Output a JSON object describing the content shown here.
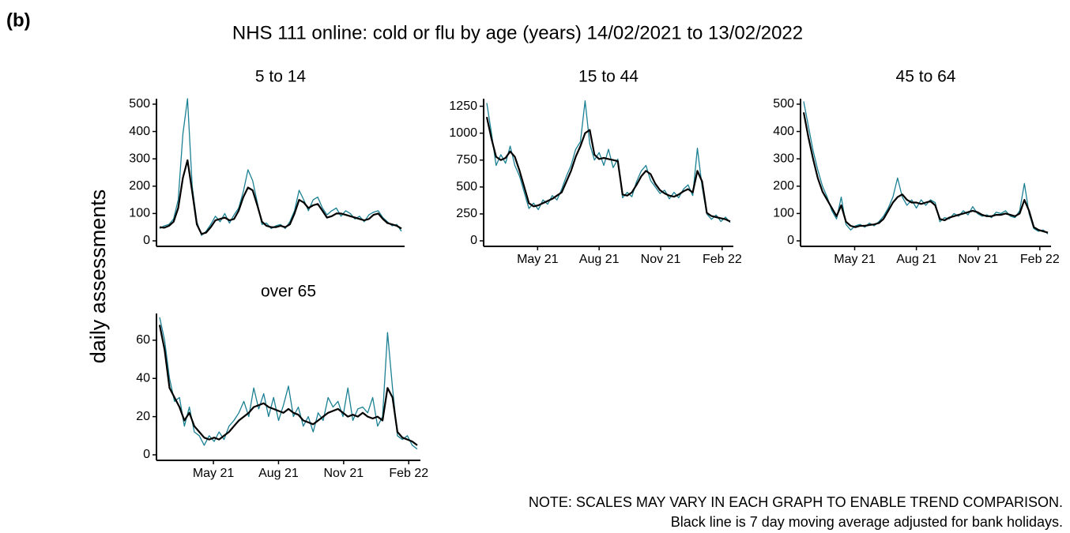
{
  "figure": {
    "label": "(b)",
    "title": "NHS 111 online: cold or flu by age (years) 14/02/2021 to 13/02/2022",
    "y_label": "daily assessments",
    "notes": [
      "NOTE: SCALES MAY VARY IN EACH GRAPH TO ENABLE TREND COMPARISON.",
      "Black line is 7 day moving average adjusted for bank holidays."
    ]
  },
  "chart_data": [
    {
      "type": "line",
      "title": "5 to 14",
      "x": [
        "2021-02-14",
        "2021-02-21",
        "2021-02-28",
        "2021-03-07",
        "2021-03-14",
        "2021-03-21",
        "2021-03-28",
        "2021-04-04",
        "2021-04-11",
        "2021-04-18",
        "2021-04-25",
        "2021-05-02",
        "2021-05-09",
        "2021-05-16",
        "2021-05-23",
        "2021-05-30",
        "2021-06-06",
        "2021-06-13",
        "2021-06-20",
        "2021-06-27",
        "2021-07-04",
        "2021-07-11",
        "2021-07-18",
        "2021-07-25",
        "2021-08-01",
        "2021-08-08",
        "2021-08-15",
        "2021-08-22",
        "2021-08-29",
        "2021-09-05",
        "2021-09-12",
        "2021-09-19",
        "2021-09-26",
        "2021-10-03",
        "2021-10-10",
        "2021-10-17",
        "2021-10-24",
        "2021-10-31",
        "2021-11-07",
        "2021-11-14",
        "2021-11-21",
        "2021-11-28",
        "2021-12-05",
        "2021-12-12",
        "2021-12-19",
        "2021-12-26",
        "2022-01-02",
        "2022-01-09",
        "2022-01-16",
        "2022-01-23",
        "2022-01-30",
        "2022-02-06",
        "2022-02-13"
      ],
      "series": [
        {
          "color": "#1b8093",
          "values": [
            45,
            55,
            60,
            80,
            150,
            390,
            520,
            200,
            70,
            20,
            35,
            60,
            90,
            70,
            100,
            65,
            95,
            120,
            180,
            260,
            220,
            140,
            60,
            65,
            45,
            55,
            60,
            45,
            70,
            110,
            185,
            150,
            110,
            150,
            160,
            120,
            95,
            110,
            120,
            90,
            110,
            100,
            80,
            90,
            70,
            95,
            105,
            110,
            85,
            70,
            55,
            60,
            35
          ]
        },
        {
          "color": "#000000",
          "values": [
            50,
            48,
            55,
            70,
            120,
            230,
            295,
            180,
            60,
            25,
            30,
            50,
            75,
            80,
            85,
            75,
            80,
            110,
            160,
            195,
            185,
            130,
            70,
            55,
            50,
            50,
            55,
            50,
            60,
            100,
            150,
            140,
            120,
            130,
            135,
            110,
            85,
            90,
            100,
            100,
            95,
            90,
            85,
            80,
            75,
            80,
            95,
            100,
            80,
            65,
            60,
            55,
            45
          ]
        }
      ],
      "xlim": [
        "2021-02-14",
        "2022-02-13"
      ],
      "ylim": [
        0,
        520
      ],
      "yticks": [
        0,
        100,
        200,
        300,
        400,
        500
      ]
    },
    {
      "type": "line",
      "title": "15 to 44",
      "x": [
        "2021-02-14",
        "2021-02-21",
        "2021-02-28",
        "2021-03-07",
        "2021-03-14",
        "2021-03-21",
        "2021-03-28",
        "2021-04-04",
        "2021-04-11",
        "2021-04-18",
        "2021-04-25",
        "2021-05-02",
        "2021-05-09",
        "2021-05-16",
        "2021-05-23",
        "2021-05-30",
        "2021-06-06",
        "2021-06-13",
        "2021-06-20",
        "2021-06-27",
        "2021-07-04",
        "2021-07-11",
        "2021-07-18",
        "2021-07-25",
        "2021-08-01",
        "2021-08-08",
        "2021-08-15",
        "2021-08-22",
        "2021-08-29",
        "2021-09-05",
        "2021-09-12",
        "2021-09-19",
        "2021-09-26",
        "2021-10-03",
        "2021-10-10",
        "2021-10-17",
        "2021-10-24",
        "2021-10-31",
        "2021-11-07",
        "2021-11-14",
        "2021-11-21",
        "2021-11-28",
        "2021-12-05",
        "2021-12-12",
        "2021-12-19",
        "2021-12-26",
        "2022-01-02",
        "2022-01-09",
        "2022-01-16",
        "2022-01-23",
        "2022-01-30",
        "2022-02-06",
        "2022-02-13"
      ],
      "series": [
        {
          "color": "#1b8093",
          "values": [
            1280,
            1000,
            700,
            800,
            720,
            880,
            700,
            600,
            450,
            300,
            350,
            290,
            380,
            340,
            420,
            380,
            480,
            600,
            700,
            850,
            920,
            1300,
            900,
            750,
            820,
            700,
            850,
            680,
            760,
            400,
            450,
            410,
            550,
            650,
            700,
            560,
            500,
            440,
            470,
            390,
            450,
            400,
            480,
            520,
            420,
            860,
            500,
            250,
            200,
            240,
            180,
            220,
            170
          ]
        },
        {
          "color": "#000000",
          "values": [
            1150,
            950,
            780,
            750,
            770,
            830,
            780,
            650,
            500,
            350,
            320,
            330,
            350,
            370,
            390,
            420,
            450,
            550,
            650,
            780,
            880,
            1000,
            1030,
            800,
            760,
            770,
            760,
            750,
            740,
            430,
            420,
            450,
            520,
            600,
            650,
            620,
            530,
            470,
            440,
            420,
            410,
            430,
            460,
            480,
            450,
            650,
            550,
            260,
            230,
            220,
            210,
            200,
            180
          ]
        }
      ],
      "xlim": [
        "2021-02-14",
        "2022-02-13"
      ],
      "ylim": [
        0,
        1320
      ],
      "yticks": [
        0,
        250,
        500,
        750,
        1000,
        1250
      ],
      "xticks": [
        {
          "value": "2021-05-01",
          "label": "May 21"
        },
        {
          "value": "2021-08-01",
          "label": "Aug 21"
        },
        {
          "value": "2021-11-01",
          "label": "Nov 21"
        },
        {
          "value": "2022-02-01",
          "label": "Feb 22"
        }
      ]
    },
    {
      "type": "line",
      "title": "45 to 64",
      "x": [
        "2021-02-14",
        "2021-02-21",
        "2021-02-28",
        "2021-03-07",
        "2021-03-14",
        "2021-03-21",
        "2021-03-28",
        "2021-04-04",
        "2021-04-11",
        "2021-04-18",
        "2021-04-25",
        "2021-05-02",
        "2021-05-09",
        "2021-05-16",
        "2021-05-23",
        "2021-05-30",
        "2021-06-06",
        "2021-06-13",
        "2021-06-20",
        "2021-06-27",
        "2021-07-04",
        "2021-07-11",
        "2021-07-18",
        "2021-07-25",
        "2021-08-01",
        "2021-08-08",
        "2021-08-15",
        "2021-08-22",
        "2021-08-29",
        "2021-09-05",
        "2021-09-12",
        "2021-09-19",
        "2021-09-26",
        "2021-10-03",
        "2021-10-10",
        "2021-10-17",
        "2021-10-24",
        "2021-10-31",
        "2021-11-07",
        "2021-11-14",
        "2021-11-21",
        "2021-11-28",
        "2021-12-05",
        "2021-12-12",
        "2021-12-19",
        "2021-12-26",
        "2022-01-02",
        "2022-01-09",
        "2022-01-16",
        "2022-01-23",
        "2022-01-30",
        "2022-02-06",
        "2022-02-13"
      ],
      "series": [
        {
          "color": "#1b8093",
          "values": [
            510,
            420,
            330,
            260,
            200,
            160,
            110,
            80,
            160,
            60,
            40,
            55,
            60,
            50,
            65,
            55,
            70,
            90,
            120,
            160,
            230,
            160,
            130,
            150,
            120,
            150,
            130,
            150,
            140,
            70,
            85,
            80,
            100,
            90,
            110,
            95,
            125,
            100,
            90,
            95,
            85,
            105,
            100,
            110,
            90,
            85,
            110,
            210,
            100,
            45,
            35,
            40,
            25
          ]
        },
        {
          "color": "#000000",
          "values": [
            470,
            380,
            300,
            230,
            180,
            150,
            120,
            90,
            130,
            70,
            55,
            50,
            55,
            55,
            58,
            60,
            65,
            80,
            110,
            140,
            160,
            170,
            150,
            140,
            140,
            135,
            140,
            145,
            130,
            80,
            75,
            85,
            90,
            95,
            100,
            105,
            110,
            105,
            95,
            90,
            90,
            95,
            95,
            100,
            95,
            90,
            100,
            150,
            110,
            50,
            40,
            35,
            30
          ]
        }
      ],
      "xlim": [
        "2021-02-14",
        "2022-02-13"
      ],
      "ylim": [
        0,
        520
      ],
      "yticks": [
        0,
        100,
        200,
        300,
        400,
        500
      ],
      "xticks": [
        {
          "value": "2021-05-01",
          "label": "May 21"
        },
        {
          "value": "2021-08-01",
          "label": "Aug 21"
        },
        {
          "value": "2021-11-01",
          "label": "Nov 21"
        },
        {
          "value": "2022-02-01",
          "label": "Feb 22"
        }
      ]
    },
    {
      "type": "line",
      "title": "over 65",
      "x": [
        "2021-02-14",
        "2021-02-21",
        "2021-02-28",
        "2021-03-07",
        "2021-03-14",
        "2021-03-21",
        "2021-03-28",
        "2021-04-04",
        "2021-04-11",
        "2021-04-18",
        "2021-04-25",
        "2021-05-02",
        "2021-05-09",
        "2021-05-16",
        "2021-05-23",
        "2021-05-30",
        "2021-06-06",
        "2021-06-13",
        "2021-06-20",
        "2021-06-27",
        "2021-07-04",
        "2021-07-11",
        "2021-07-18",
        "2021-07-25",
        "2021-08-01",
        "2021-08-08",
        "2021-08-15",
        "2021-08-22",
        "2021-08-29",
        "2021-09-05",
        "2021-09-12",
        "2021-09-19",
        "2021-09-26",
        "2021-10-03",
        "2021-10-10",
        "2021-10-17",
        "2021-10-24",
        "2021-10-31",
        "2021-11-07",
        "2021-11-14",
        "2021-11-21",
        "2021-11-28",
        "2021-12-05",
        "2021-12-12",
        "2021-12-19",
        "2021-12-26",
        "2022-01-02",
        "2022-01-09",
        "2022-01-16",
        "2022-01-23",
        "2022-01-30",
        "2022-02-06",
        "2022-02-13"
      ],
      "series": [
        {
          "color": "#1b8093",
          "values": [
            72,
            60,
            40,
            28,
            30,
            15,
            25,
            12,
            10,
            5,
            10,
            7,
            12,
            8,
            15,
            18,
            22,
            28,
            20,
            35,
            24,
            32,
            20,
            30,
            18,
            26,
            36,
            20,
            25,
            15,
            20,
            12,
            22,
            18,
            30,
            25,
            28,
            20,
            35,
            18,
            24,
            25,
            22,
            30,
            15,
            20,
            64,
            35,
            10,
            8,
            10,
            5,
            3
          ]
        },
        {
          "color": "#000000",
          "values": [
            68,
            55,
            35,
            30,
            25,
            18,
            22,
            15,
            12,
            9,
            8,
            9,
            8,
            10,
            12,
            15,
            18,
            20,
            22,
            25,
            26,
            27,
            25,
            24,
            23,
            22,
            24,
            22,
            21,
            18,
            17,
            16,
            18,
            20,
            22,
            23,
            24,
            22,
            20,
            21,
            20,
            22,
            20,
            19,
            20,
            18,
            35,
            30,
            12,
            9,
            8,
            7,
            5
          ]
        }
      ],
      "xlim": [
        "2021-02-14",
        "2022-02-13"
      ],
      "ylim": [
        0,
        74
      ],
      "yticks": [
        0,
        20,
        40,
        60
      ],
      "xticks": [
        {
          "value": "2021-05-01",
          "label": "May 21"
        },
        {
          "value": "2021-08-01",
          "label": "Aug 21"
        },
        {
          "value": "2021-11-01",
          "label": "Nov 21"
        },
        {
          "value": "2022-02-01",
          "label": "Feb 22"
        }
      ]
    }
  ]
}
